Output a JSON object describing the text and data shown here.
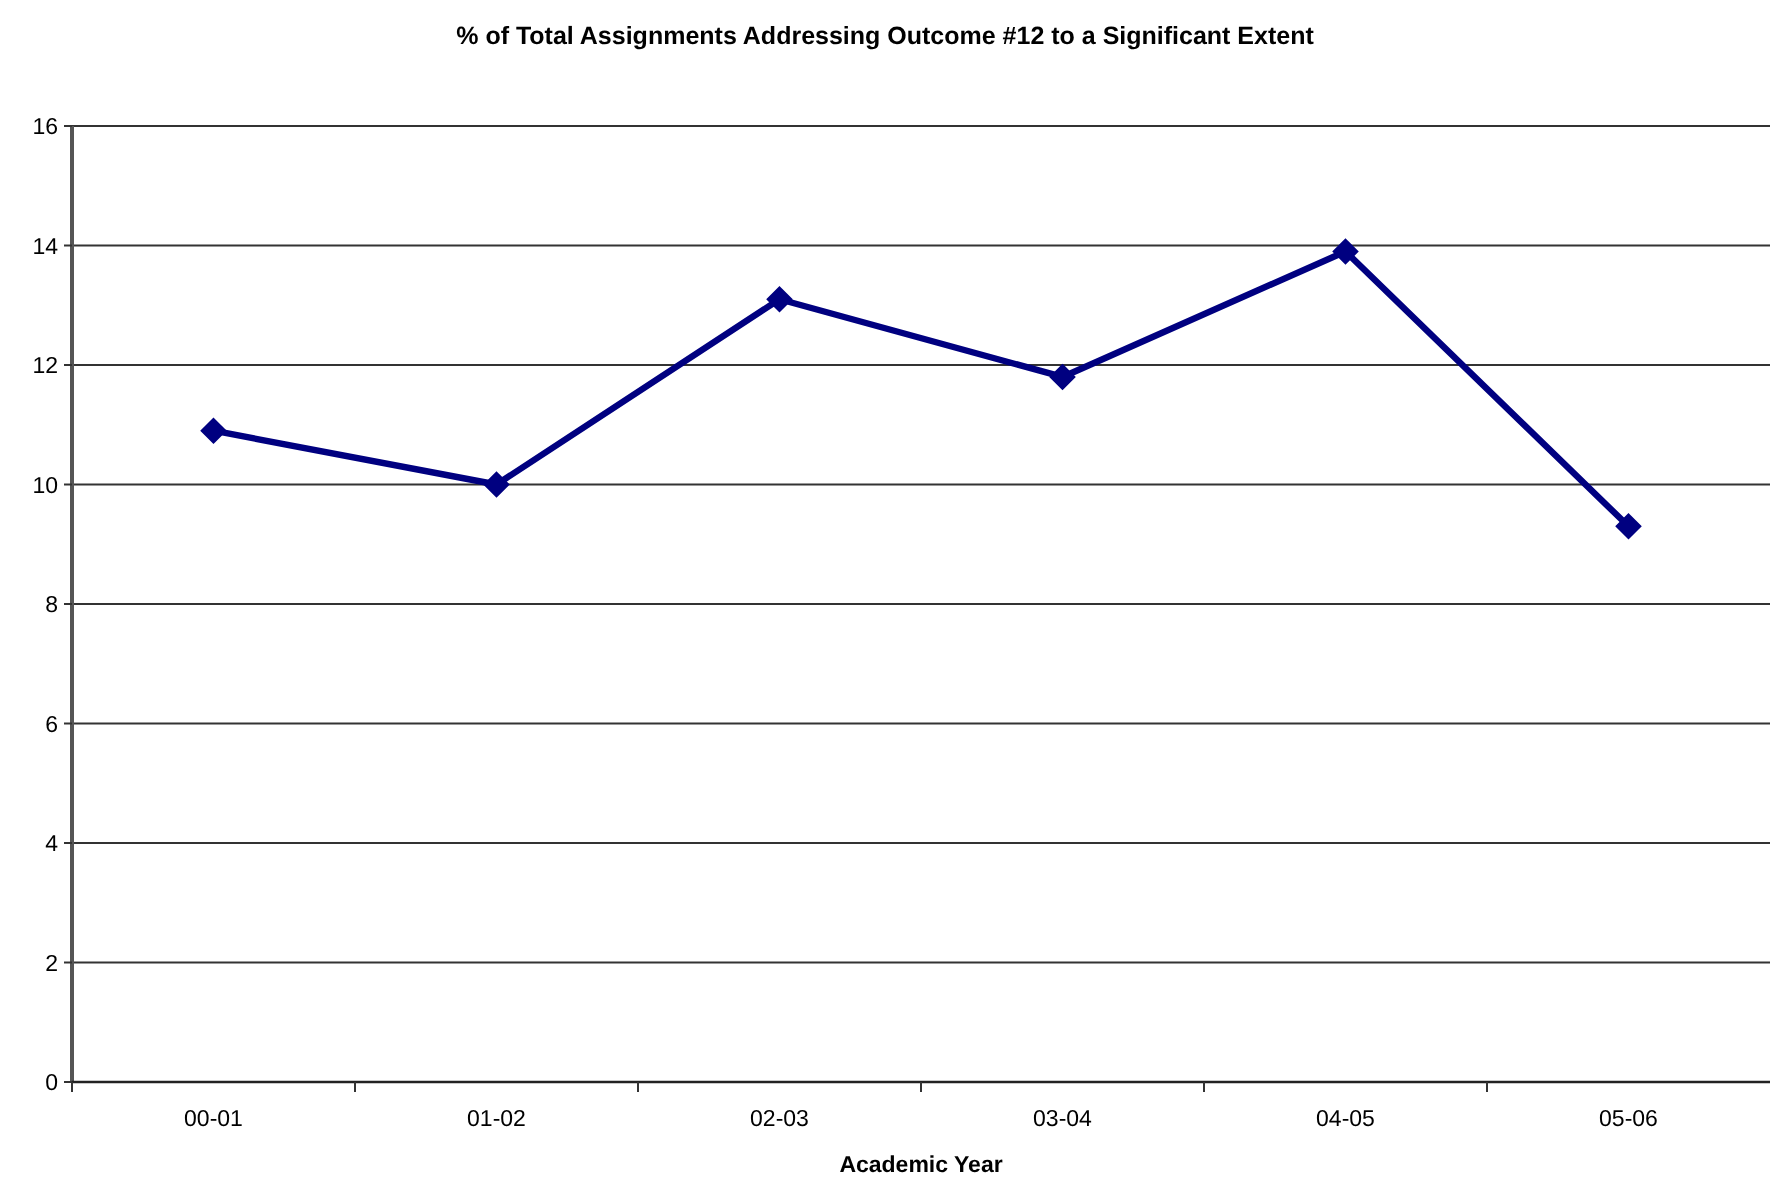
{
  "chart_data": {
    "type": "line",
    "title": "% of Total Assignments Addressing Outcome #12 to a Significant Extent",
    "xlabel": "Academic Year",
    "categories": [
      "00-01",
      "01-02",
      "02-03",
      "03-04",
      "04-05",
      "05-06"
    ],
    "series": [
      {
        "color": "#000080",
        "values": [
          10.9,
          10.0,
          13.1,
          11.8,
          13.9,
          9.3
        ]
      }
    ],
    "ylim": [
      0,
      16
    ],
    "yticks": [
      0,
      2,
      4,
      6,
      8,
      10,
      12,
      14,
      16
    ],
    "grid": "y",
    "marker": "diamond",
    "line_style": "solid"
  }
}
